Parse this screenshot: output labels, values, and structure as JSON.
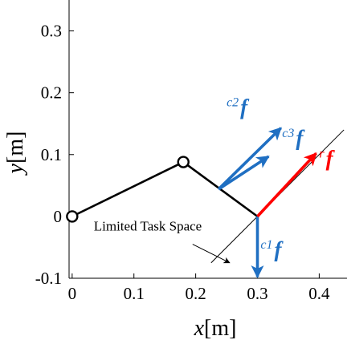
{
  "chart_data": {
    "type": "line",
    "xlabel": {
      "var": "x",
      "unit": "[m]"
    },
    "ylabel": {
      "var": "y",
      "unit": "[m]"
    },
    "xlim": [
      -0.005,
      0.445
    ],
    "ylim": [
      -0.1,
      0.35
    ],
    "xticks": [
      {
        "value": 0,
        "label": "0"
      },
      {
        "value": 0.1,
        "label": "0.1"
      },
      {
        "value": 0.2,
        "label": "0.2"
      },
      {
        "value": 0.3,
        "label": "0.3"
      },
      {
        "value": 0.4,
        "label": "0.4"
      }
    ],
    "yticks": [
      {
        "value": -0.1,
        "label": "-0.1"
      },
      {
        "value": 0,
        "label": "0"
      },
      {
        "value": 0.1,
        "label": "0.1"
      },
      {
        "value": 0.2,
        "label": "0.2"
      },
      {
        "value": 0.3,
        "label": "0.3"
      }
    ],
    "grid": false,
    "links": [
      {
        "x": [
          0.0,
          0.18
        ],
        "y": [
          0.0,
          0.088
        ]
      },
      {
        "x": [
          0.18,
          0.3
        ],
        "y": [
          0.088,
          0.0
        ]
      }
    ],
    "joints": [
      {
        "x": 0.0,
        "y": 0.0
      },
      {
        "x": 0.18,
        "y": 0.088
      }
    ],
    "task_space_line": {
      "x": [
        0.225,
        0.44
      ],
      "y": [
        -0.075,
        0.14
      ],
      "label": "Limited Task Space"
    },
    "annotation": {
      "text": "Limited Task Space",
      "text_pos": [
        0.035,
        -0.023
      ],
      "arrow_from": [
        0.195,
        -0.045
      ],
      "arrow_to": [
        0.255,
        -0.075
      ]
    },
    "forces": [
      {
        "name": "c1",
        "symbol": "f",
        "color": "#1f6fc2",
        "from": [
          0.3,
          0.0
        ],
        "to": [
          0.3,
          -0.098
        ],
        "label_pos": [
          0.305,
          -0.065
        ]
      },
      {
        "name": "c2",
        "symbol": "f",
        "color": "#1f6fc2",
        "from": [
          0.237,
          0.044
        ],
        "to": [
          0.338,
          0.143
        ],
        "label_pos": [
          0.25,
          0.165
        ]
      },
      {
        "name": "c3",
        "symbol": "f",
        "color": "#1f6fc2",
        "from": [
          0.237,
          0.044
        ],
        "to": [
          0.318,
          0.097
        ],
        "label_pos": [
          0.34,
          0.115
        ]
      },
      {
        "name": "r",
        "symbol": "f",
        "color": "#ff0000",
        "from": [
          0.3,
          0.0
        ],
        "to": [
          0.395,
          0.102
        ],
        "label_pos": [
          0.4,
          0.082
        ]
      }
    ]
  }
}
